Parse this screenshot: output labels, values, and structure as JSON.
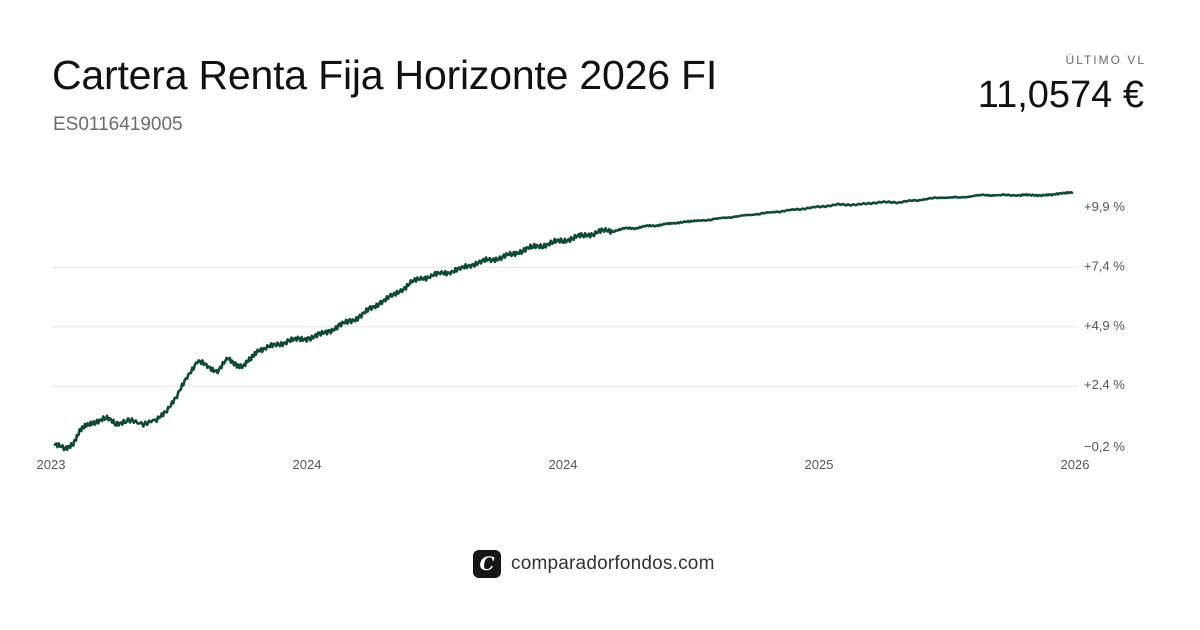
{
  "header": {
    "fund_name": "Cartera Renta Fija Horizonte 2026 FI",
    "isin": "ES0116419005",
    "nav_label": "ÚLTIMO VL",
    "nav_value": "11,0574 €"
  },
  "brand": {
    "logo_glyph": "C",
    "site": "comparadorfondos.com"
  },
  "colors": {
    "line": "#0f4a33",
    "grid": "#e6e6e6",
    "tick_text": "#555555",
    "brand_dark": "#161616"
  },
  "chart_data": {
    "type": "line",
    "title": "",
    "xlabel": "",
    "ylabel": "",
    "grid": true,
    "legend": "none",
    "x_ticks": [
      "2023",
      "2024",
      "2024",
      "2025",
      "2026"
    ],
    "y_ticks": [
      "−0,2 %",
      "+2,4 %",
      "+4,9 %",
      "+7,4 %",
      "+9,9 %"
    ],
    "y_tick_values": [
      -0.2,
      2.4,
      4.9,
      7.4,
      9.9
    ],
    "xlim": [
      0,
      1
    ],
    "ylim": [
      -0.2,
      9.9
    ],
    "series": [
      {
        "x": [
          0.0,
          0.01,
          0.018,
          0.025,
          0.032,
          0.04,
          0.05,
          0.06,
          0.07,
          0.085,
          0.1,
          0.11,
          0.12,
          0.13,
          0.14,
          0.15,
          0.16,
          0.17,
          0.178,
          0.185,
          0.193,
          0.2,
          0.21,
          0.22,
          0.23,
          0.24,
          0.25,
          0.26,
          0.27,
          0.28,
          0.29,
          0.3,
          0.31,
          0.32,
          0.33,
          0.34,
          0.35,
          0.36,
          0.37,
          0.38,
          0.39,
          0.4,
          0.41,
          0.42,
          0.43,
          0.44,
          0.45,
          0.46,
          0.47,
          0.48,
          0.49,
          0.5,
          0.51,
          0.52,
          0.53,
          0.54,
          0.55,
          0.56,
          0.57,
          0.58,
          0.59,
          0.6,
          0.61,
          0.62,
          0.63,
          0.65,
          0.67,
          0.69,
          0.71,
          0.73,
          0.75,
          0.77,
          0.79,
          0.81,
          0.83,
          0.85,
          0.87,
          0.89,
          0.91,
          0.93,
          0.95,
          0.96,
          0.97,
          0.98,
          0.99,
          1.0
        ],
        "y": [
          -0.1,
          -0.3,
          0.0,
          0.5,
          0.7,
          0.9,
          1.0,
          0.8,
          0.9,
          0.8,
          0.9,
          1.4,
          1.9,
          2.8,
          3.4,
          3.2,
          3.0,
          3.5,
          3.3,
          3.2,
          3.5,
          3.9,
          4.0,
          4.1,
          4.3,
          4.3,
          4.4,
          4.5,
          4.7,
          4.9,
          5.1,
          5.3,
          5.6,
          5.9,
          6.1,
          6.4,
          6.7,
          6.9,
          7.0,
          7.1,
          7.2,
          7.3,
          7.5,
          7.6,
          7.7,
          7.8,
          7.9,
          8.1,
          8.2,
          8.3,
          8.4,
          8.5,
          8.6,
          8.7,
          8.8,
          8.9,
          8.9,
          9.0,
          9.0,
          9.1,
          9.1,
          9.2,
          9.2,
          9.3,
          9.3,
          9.4,
          9.5,
          9.6,
          9.7,
          9.8,
          9.9,
          10.0,
          10.0,
          10.1,
          10.1,
          10.2,
          10.3,
          10.3,
          10.4,
          10.4,
          10.4,
          10.4,
          10.4,
          10.4,
          10.5,
          10.5
        ]
      }
    ]
  }
}
